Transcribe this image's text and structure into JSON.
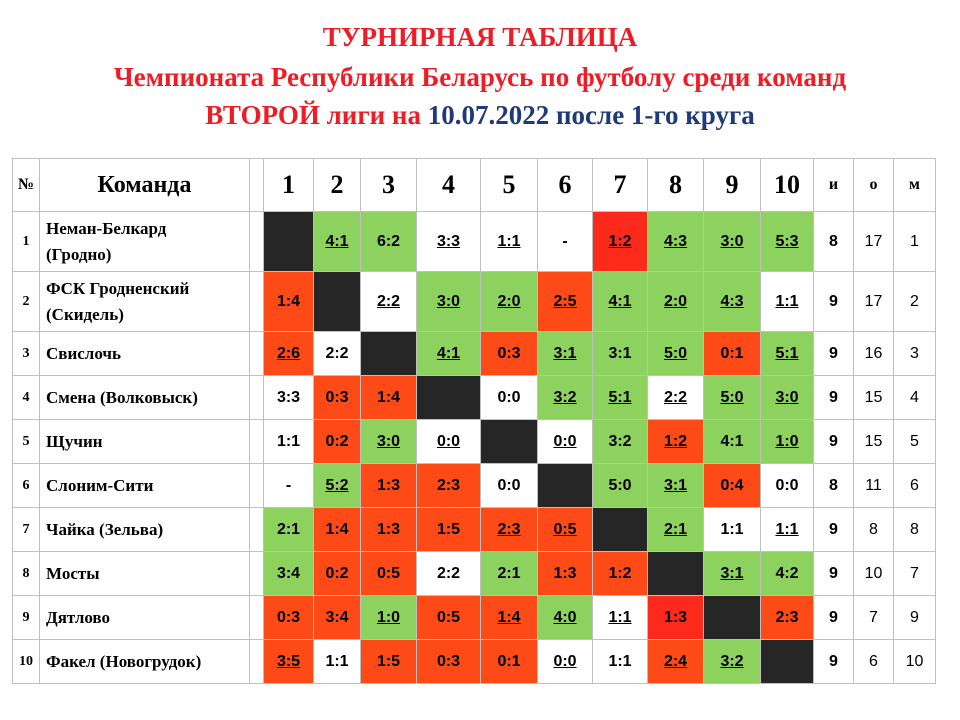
{
  "title": {
    "line1": "ТУРНИРНАЯ ТАБЛИЦА",
    "line2": "Чемпионата Республики Беларусь по футболу среди команд",
    "line3_red": "ВТОРОЙ лиги на ",
    "line3_navy": "10.07.2022 после 1-го круга"
  },
  "headers": {
    "num": "№",
    "team": "Команда",
    "cols": [
      "1",
      "2",
      "3",
      "4",
      "5",
      "6",
      "7",
      "8",
      "9",
      "10"
    ],
    "games": "и",
    "points": "о",
    "place": "м"
  },
  "colors": {
    "win": "#8dd25e",
    "loss": "#fd4a17",
    "draw": "#ffffff",
    "self": "#262626",
    "title_red": "#ee1c25",
    "title_navy": "#1f3a7a"
  },
  "rows": [
    {
      "no": "1",
      "team_line1": "Неман-Белкард",
      "team_line2": "(Гродно)",
      "results": [
        "",
        "4:1",
        "6:2",
        "3:3",
        "1:1",
        "-",
        "1:2",
        "4:3",
        "3:0",
        "5:3"
      ],
      "games": "8",
      "points": "17",
      "place": "1"
    },
    {
      "no": "2",
      "team_line1": "ФСК Гродненский",
      "team_line2": "(Скидель)",
      "results": [
        "1:4",
        "",
        "2:2",
        "3:0",
        "2:0",
        "2:5",
        "4:1",
        "2:0",
        "4:3",
        "1:1"
      ],
      "games": "9",
      "points": "17",
      "place": "2"
    },
    {
      "no": "3",
      "team_line1": "Свислочь",
      "team_line2": "",
      "results": [
        "2:6",
        "2:2",
        "",
        "4:1",
        "0:3",
        "3:1",
        "3:1",
        "5:0",
        "0:1",
        "5:1"
      ],
      "games": "9",
      "points": "16",
      "place": "3"
    },
    {
      "no": "4",
      "team_line1": "Смена (Волковыск)",
      "team_line2": "",
      "results": [
        "3:3",
        "0:3",
        "1:4",
        "",
        "0:0",
        "3:2",
        "5:1",
        "2:2",
        "5:0",
        "3:0"
      ],
      "games": "9",
      "points": "15",
      "place": "4"
    },
    {
      "no": "5",
      "team_line1": "Щучин",
      "team_line2": "",
      "results": [
        "1:1",
        "0:2",
        "3:0",
        "0:0",
        "",
        "0:0",
        "3:2",
        "1:2",
        "4:1",
        "1:0"
      ],
      "games": "9",
      "points": "15",
      "place": "5"
    },
    {
      "no": "6",
      "team_line1": "Слоним-Сити",
      "team_line2": "",
      "results": [
        "-",
        "5:2",
        "1:3",
        "2:3",
        "0:0",
        "",
        "5:0",
        "3:1",
        "0:4",
        "0:0"
      ],
      "games": "8",
      "points": "11",
      "place": "6"
    },
    {
      "no": "7",
      "team_line1": "Чайка (Зельва)",
      "team_line2": "",
      "results": [
        "2:1",
        "1:4",
        "1:3",
        "1:5",
        "2:3",
        "0:5",
        "",
        "2:1",
        "1:1",
        "1:1"
      ],
      "games": "9",
      "points": "8",
      "place": "8"
    },
    {
      "no": "8",
      "team_line1": "Мосты",
      "team_line2": "",
      "results": [
        "3:4",
        "0:2",
        "0:5",
        "2:2",
        "2:1",
        "1:3",
        "1:2",
        "",
        "3:1",
        "4:2"
      ],
      "games": "9",
      "points": "10",
      "place": "7"
    },
    {
      "no": "9",
      "team_line1": "Дятлово",
      "team_line2": "",
      "results": [
        "0:3",
        "3:4",
        "1:0",
        "0:5",
        "1:4",
        "4:0",
        "1:1",
        "1:3",
        "",
        "2:3"
      ],
      "games": "9",
      "points": "7",
      "place": "9"
    },
    {
      "no": "10",
      "team_line1": "Факел (Новогрудок)",
      "team_line2": "",
      "results": [
        "3:5",
        "1:1",
        "1:5",
        "0:3",
        "0:1",
        "0:0",
        "1:1",
        "2:4",
        "3:2",
        ""
      ],
      "games": "9",
      "points": "6",
      "place": "10"
    }
  ]
}
